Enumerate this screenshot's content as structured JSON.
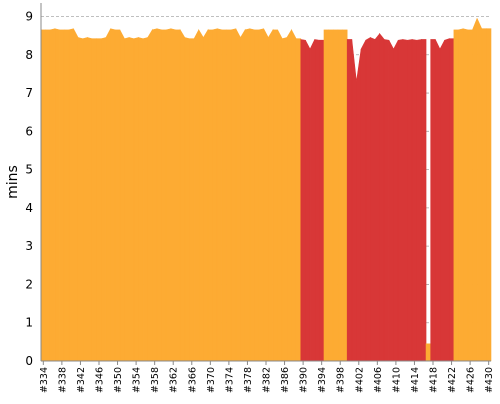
{
  "chart_data": {
    "type": "area",
    "ylabel": "mins",
    "ylim": [
      0,
      9.3
    ],
    "yticks": [
      "0",
      "1",
      "2",
      "3",
      "4",
      "5",
      "6",
      "7",
      "8",
      "9"
    ],
    "x_ticks": [
      "#334",
      "#338",
      "#342",
      "#346",
      "#350",
      "#354",
      "#358",
      "#362",
      "#366",
      "#370",
      "#374",
      "#378",
      "#382",
      "#386",
      "#390",
      "#394",
      "#398",
      "#402",
      "#406",
      "#410",
      "#414",
      "#418",
      "#422",
      "#426",
      "#430"
    ],
    "grid": true,
    "colors": {
      "success": "#FDAB33",
      "failure": "#D83737",
      "grid": "#aaaaaa",
      "axis": "#888888"
    },
    "builds": [
      {
        "x": 334,
        "y": 8.65,
        "status": "success"
      },
      {
        "x": 335,
        "y": 8.65,
        "status": "success"
      },
      {
        "x": 336,
        "y": 8.65,
        "status": "success"
      },
      {
        "x": 337,
        "y": 8.68,
        "status": "success"
      },
      {
        "x": 338,
        "y": 8.65,
        "status": "success"
      },
      {
        "x": 339,
        "y": 8.65,
        "status": "success"
      },
      {
        "x": 340,
        "y": 8.65,
        "status": "success"
      },
      {
        "x": 341,
        "y": 8.68,
        "status": "success"
      },
      {
        "x": 342,
        "y": 8.45,
        "status": "success"
      },
      {
        "x": 343,
        "y": 8.42,
        "status": "success"
      },
      {
        "x": 344,
        "y": 8.45,
        "status": "success"
      },
      {
        "x": 345,
        "y": 8.42,
        "status": "success"
      },
      {
        "x": 346,
        "y": 8.42,
        "status": "success"
      },
      {
        "x": 347,
        "y": 8.42,
        "status": "success"
      },
      {
        "x": 348,
        "y": 8.45,
        "status": "success"
      },
      {
        "x": 349,
        "y": 8.68,
        "status": "success"
      },
      {
        "x": 350,
        "y": 8.65,
        "status": "success"
      },
      {
        "x": 351,
        "y": 8.65,
        "status": "success"
      },
      {
        "x": 352,
        "y": 8.42,
        "status": "success"
      },
      {
        "x": 353,
        "y": 8.45,
        "status": "success"
      },
      {
        "x": 354,
        "y": 8.42,
        "status": "success"
      },
      {
        "x": 355,
        "y": 8.45,
        "status": "success"
      },
      {
        "x": 356,
        "y": 8.42,
        "status": "success"
      },
      {
        "x": 357,
        "y": 8.45,
        "status": "success"
      },
      {
        "x": 358,
        "y": 8.65,
        "status": "success"
      },
      {
        "x": 359,
        "y": 8.68,
        "status": "success"
      },
      {
        "x": 360,
        "y": 8.65,
        "status": "success"
      },
      {
        "x": 361,
        "y": 8.65,
        "status": "success"
      },
      {
        "x": 362,
        "y": 8.68,
        "status": "success"
      },
      {
        "x": 363,
        "y": 8.65,
        "status": "success"
      },
      {
        "x": 364,
        "y": 8.65,
        "status": "success"
      },
      {
        "x": 365,
        "y": 8.45,
        "status": "success"
      },
      {
        "x": 366,
        "y": 8.42,
        "status": "success"
      },
      {
        "x": 367,
        "y": 8.42,
        "status": "success"
      },
      {
        "x": 368,
        "y": 8.65,
        "status": "success"
      },
      {
        "x": 369,
        "y": 8.45,
        "status": "success"
      },
      {
        "x": 370,
        "y": 8.65,
        "status": "success"
      },
      {
        "x": 371,
        "y": 8.65,
        "status": "success"
      },
      {
        "x": 372,
        "y": 8.68,
        "status": "success"
      },
      {
        "x": 373,
        "y": 8.65,
        "status": "success"
      },
      {
        "x": 374,
        "y": 8.65,
        "status": "success"
      },
      {
        "x": 375,
        "y": 8.65,
        "status": "success"
      },
      {
        "x": 376,
        "y": 8.68,
        "status": "success"
      },
      {
        "x": 377,
        "y": 8.45,
        "status": "success"
      },
      {
        "x": 378,
        "y": 8.65,
        "status": "success"
      },
      {
        "x": 379,
        "y": 8.68,
        "status": "success"
      },
      {
        "x": 380,
        "y": 8.65,
        "status": "success"
      },
      {
        "x": 381,
        "y": 8.65,
        "status": "success"
      },
      {
        "x": 382,
        "y": 8.68,
        "status": "success"
      },
      {
        "x": 383,
        "y": 8.45,
        "status": "success"
      },
      {
        "x": 384,
        "y": 8.65,
        "status": "success"
      },
      {
        "x": 385,
        "y": 8.65,
        "status": "success"
      },
      {
        "x": 386,
        "y": 8.42,
        "status": "success"
      },
      {
        "x": 387,
        "y": 8.45,
        "status": "success"
      },
      {
        "x": 388,
        "y": 8.65,
        "status": "success"
      },
      {
        "x": 389,
        "y": 8.42,
        "status": "success"
      },
      {
        "x": 390,
        "y": 8.4,
        "status": "failure"
      },
      {
        "x": 391,
        "y": 8.38,
        "status": "failure"
      },
      {
        "x": 392,
        "y": 8.15,
        "status": "failure"
      },
      {
        "x": 393,
        "y": 8.4,
        "status": "failure"
      },
      {
        "x": 394,
        "y": 8.38,
        "status": "failure"
      },
      {
        "x": 395,
        "y": 8.65,
        "status": "success"
      },
      {
        "x": 396,
        "y": 8.65,
        "status": "success"
      },
      {
        "x": 397,
        "y": 8.65,
        "status": "success"
      },
      {
        "x": 398,
        "y": 8.65,
        "status": "success"
      },
      {
        "x": 399,
        "y": 8.65,
        "status": "success"
      },
      {
        "x": 400,
        "y": 8.4,
        "status": "failure"
      },
      {
        "x": 401,
        "y": 8.4,
        "status": "failure"
      },
      {
        "x": 402,
        "y": 7.3,
        "status": "failure"
      },
      {
        "x": 403,
        "y": 8.15,
        "status": "failure"
      },
      {
        "x": 404,
        "y": 8.38,
        "status": "failure"
      },
      {
        "x": 405,
        "y": 8.45,
        "status": "failure"
      },
      {
        "x": 406,
        "y": 8.4,
        "status": "failure"
      },
      {
        "x": 407,
        "y": 8.55,
        "status": "failure"
      },
      {
        "x": 408,
        "y": 8.4,
        "status": "failure"
      },
      {
        "x": 409,
        "y": 8.38,
        "status": "failure"
      },
      {
        "x": 410,
        "y": 8.15,
        "status": "failure"
      },
      {
        "x": 411,
        "y": 8.38,
        "status": "failure"
      },
      {
        "x": 412,
        "y": 8.4,
        "status": "failure"
      },
      {
        "x": 413,
        "y": 8.38,
        "status": "failure"
      },
      {
        "x": 414,
        "y": 8.4,
        "status": "failure"
      },
      {
        "x": 415,
        "y": 8.38,
        "status": "failure"
      },
      {
        "x": 416,
        "y": 8.4,
        "status": "failure"
      },
      {
        "x": 417,
        "y": 0.45,
        "status": "success"
      },
      {
        "x": 418,
        "y": 8.4,
        "status": "failure"
      },
      {
        "x": 419,
        "y": 8.4,
        "status": "failure"
      },
      {
        "x": 420,
        "y": 8.15,
        "status": "failure"
      },
      {
        "x": 421,
        "y": 8.38,
        "status": "failure"
      },
      {
        "x": 422,
        "y": 8.42,
        "status": "failure"
      },
      {
        "x": 423,
        "y": 8.65,
        "status": "success"
      },
      {
        "x": 424,
        "y": 8.65,
        "status": "success"
      },
      {
        "x": 425,
        "y": 8.68,
        "status": "success"
      },
      {
        "x": 426,
        "y": 8.65,
        "status": "success"
      },
      {
        "x": 427,
        "y": 8.65,
        "status": "success"
      },
      {
        "x": 428,
        "y": 8.95,
        "status": "success"
      },
      {
        "x": 429,
        "y": 8.68,
        "status": "success"
      },
      {
        "x": 430,
        "y": 8.68,
        "status": "success"
      }
    ]
  }
}
